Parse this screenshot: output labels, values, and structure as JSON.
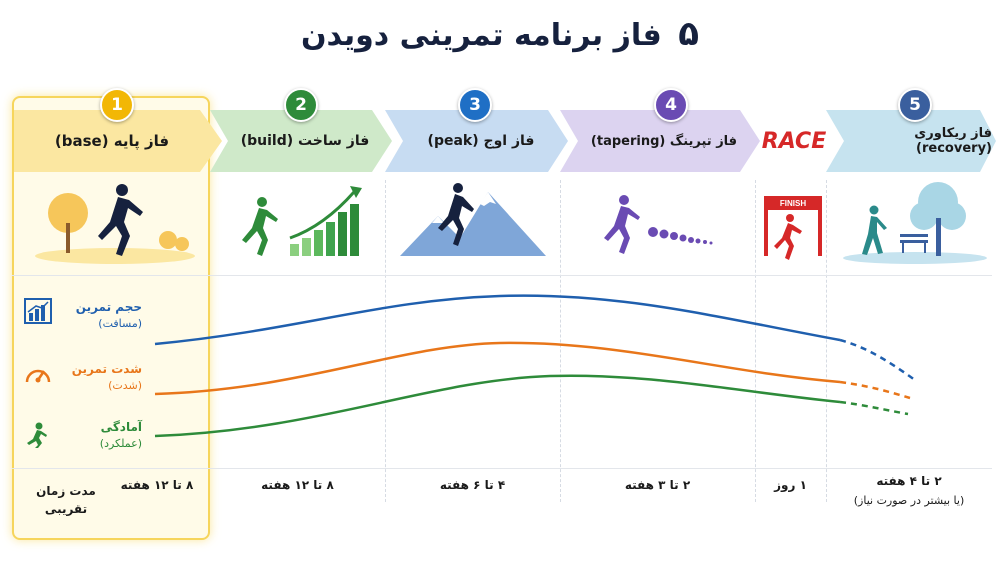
{
  "title": {
    "number": "۵",
    "text": "فاز برنامه تمرینی دویدن"
  },
  "phases": [
    {
      "num": "1",
      "label": "فاز پایه (base)",
      "duration": "۸ تا ۱۲ هفته",
      "color": "#f2b705",
      "band": "#fbe7a1"
    },
    {
      "num": "2",
      "label": "فاز ساخت (build)",
      "duration": "۸ تا ۱۲ هفته",
      "color": "#2e8b3a",
      "band": "#cfe9c9"
    },
    {
      "num": "3",
      "label": "فاز اوج (peak)",
      "duration": "۴ تا ۶ هفته",
      "color": "#1f6fc5",
      "band": "#c7dcf2"
    },
    {
      "num": "4",
      "label": "فاز تپرینگ (tapering)",
      "duration": "۲ تا ۳ هفته",
      "color": "#6a4bb3",
      "band": "#dcd3f0"
    },
    {
      "num": "5",
      "label": "فاز ریکاوری (recovery)",
      "duration": "۲ تا ۴ هفته",
      "duration_sub": "(یا بیشتر در صورت نیاز)",
      "color": "#3a5f9e",
      "band": "#c6e3ef"
    }
  ],
  "race": {
    "label": "RACE",
    "duration": "۱ روز",
    "finish": "FINISH"
  },
  "metrics": [
    {
      "name": "حجم تمرین",
      "sub": "(مسافت)",
      "color": "#1f5fae",
      "icon": "bar-chart-icon"
    },
    {
      "name": "شدت تمرین",
      "sub": "(شدت)",
      "color": "#e8761a",
      "icon": "speedometer-icon"
    },
    {
      "name": "آمادگی",
      "sub": "(عملکرد)",
      "color": "#2e8b3a",
      "icon": "runner-icon"
    }
  ],
  "duration_label": "مدت زمان تقریبی"
}
